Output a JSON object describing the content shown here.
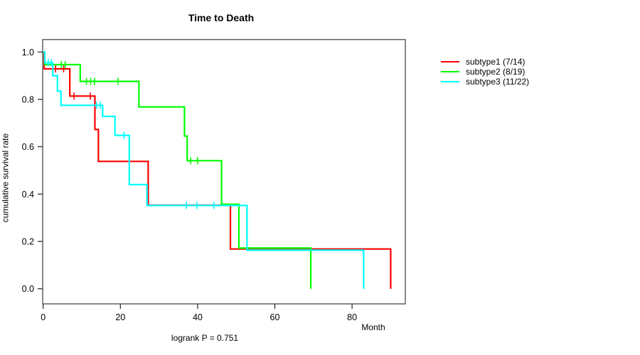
{
  "figure": {
    "title": "Time to Death",
    "x_axis_label": "Month",
    "y_axis_label": "cumulative survival rate",
    "footnote": "logrank P = 0.751"
  },
  "chart_data": {
    "type": "line",
    "variant": "kaplan-meier-step",
    "title": "Time to Death",
    "xlabel": "Month",
    "ylabel": "cumulative survival rate",
    "annotation": "logrank P = 0.751",
    "x_ticks": [
      "0",
      "20",
      "40",
      "60",
      "80"
    ],
    "x_tick_values": [
      0,
      20,
      40,
      60,
      80
    ],
    "y_ticks": [
      "1.0",
      "0.8",
      "0.6",
      "0.4",
      "0.2",
      "0.0"
    ],
    "y_tick_values": [
      1.0,
      0.8,
      0.6,
      0.4,
      0.2,
      0.0
    ],
    "xlim": [
      0,
      93.8
    ],
    "ylim": [
      0,
      1.0
    ],
    "grid": false,
    "legend_position": "upper-right-outside",
    "frame_color": "#606060",
    "axis_text_color": "#000000",
    "series": [
      {
        "name": "subtype1 (7/14)",
        "color": "#ff0000",
        "events_total": "7/14",
        "steps": [
          [
            0.25,
            0.929
          ],
          [
            6.9,
            0.814
          ],
          [
            13.4,
            0.673
          ],
          [
            14.3,
            0.538
          ],
          [
            27.2,
            0.353
          ],
          [
            48.5,
            0.168
          ],
          [
            90.0,
            0.0
          ]
        ],
        "censors": [
          [
            3.2,
            0.929
          ],
          [
            5.3,
            0.929
          ],
          [
            8.0,
            0.814
          ],
          [
            12.2,
            0.814
          ]
        ]
      },
      {
        "name": "subtype2 (8/19)",
        "color": "#00ff00",
        "events_total": "8/19",
        "steps": [
          [
            0.4,
            0.947
          ],
          [
            9.6,
            0.876
          ],
          [
            24.8,
            0.768
          ],
          [
            36.6,
            0.645
          ],
          [
            37.3,
            0.541
          ],
          [
            46.2,
            0.357
          ],
          [
            50.7,
            0.172
          ],
          [
            69.3,
            0.0
          ]
        ],
        "censors": [
          [
            4.7,
            0.947
          ],
          [
            5.7,
            0.947
          ],
          [
            11.2,
            0.876
          ],
          [
            12.3,
            0.876
          ],
          [
            13.3,
            0.876
          ],
          [
            19.4,
            0.876
          ],
          [
            38.2,
            0.541
          ],
          [
            40.0,
            0.541
          ]
        ]
      },
      {
        "name": "subtype3 (11/22)",
        "color": "#00ffff",
        "events_total": "11/22",
        "steps": [
          [
            0.4,
            0.955
          ],
          [
            2.5,
            0.9
          ],
          [
            3.7,
            0.835
          ],
          [
            4.6,
            0.775
          ],
          [
            15.4,
            0.728
          ],
          [
            18.6,
            0.648
          ],
          [
            22.3,
            0.44
          ],
          [
            26.9,
            0.352
          ],
          [
            52.8,
            0.163
          ],
          [
            83.0,
            0.0
          ]
        ],
        "censors": [
          [
            1.3,
            0.955
          ],
          [
            2.1,
            0.955
          ],
          [
            13.9,
            0.775
          ],
          [
            14.8,
            0.775
          ],
          [
            20.9,
            0.648
          ],
          [
            37.1,
            0.352
          ],
          [
            39.8,
            0.352
          ],
          [
            44.2,
            0.352
          ]
        ]
      }
    ]
  }
}
